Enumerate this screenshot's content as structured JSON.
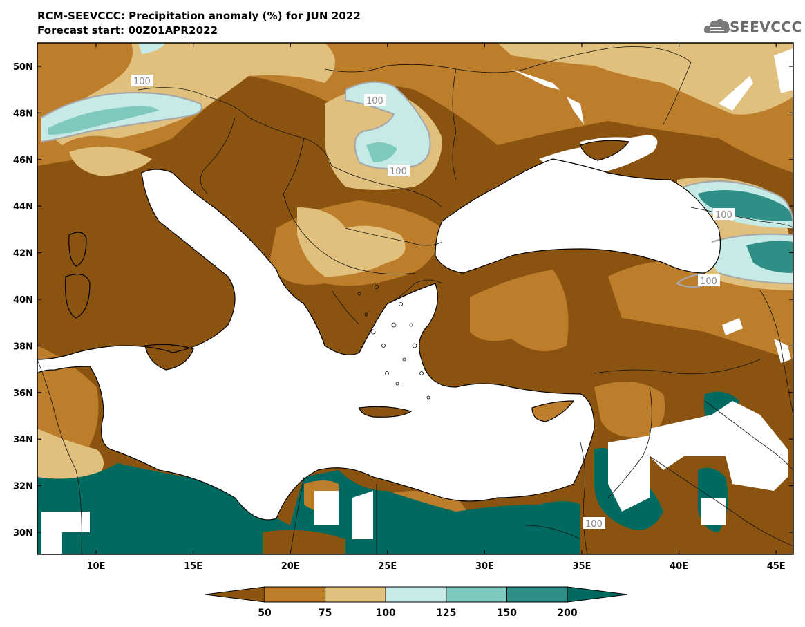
{
  "header": {
    "title_line1": "RCM-SEEVCCC: Precipitation anomaly (%) for JUN 2022",
    "title_line2": "Forecast start: 00Z01APR2022"
  },
  "logo": {
    "text": "SEEVCCC",
    "icon": "cloud-logo-icon"
  },
  "axes": {
    "lat_labels": [
      "50N",
      "48N",
      "46N",
      "44N",
      "42N",
      "40N",
      "38N",
      "36N",
      "34N",
      "32N",
      "30N"
    ],
    "lon_labels": [
      "10E",
      "15E",
      "20E",
      "25E",
      "30E",
      "35E",
      "40E",
      "45E"
    ]
  },
  "contour_labels": [
    "100",
    "100",
    "100",
    "100",
    "100",
    "100"
  ],
  "colorbar": {
    "ticks": [
      "50",
      "75",
      "100",
      "125",
      "150",
      "200"
    ],
    "colors": [
      "#8a5310",
      "#bd7e2c",
      "#e1c07e",
      "#c6ebe6",
      "#7fc9be",
      "#2f8f87",
      "#006a60"
    ]
  },
  "colors": {
    "very_dry": "#8a5310",
    "dry": "#bd7e2c",
    "slightly_dry": "#e1c07e",
    "slightly_wet": "#c6ebe6",
    "wet": "#7fc9be",
    "very_wet": "#2f8f87",
    "extreme_wet": "#006a60",
    "sea": "#ffffff",
    "contour": "#a8a8a8"
  }
}
